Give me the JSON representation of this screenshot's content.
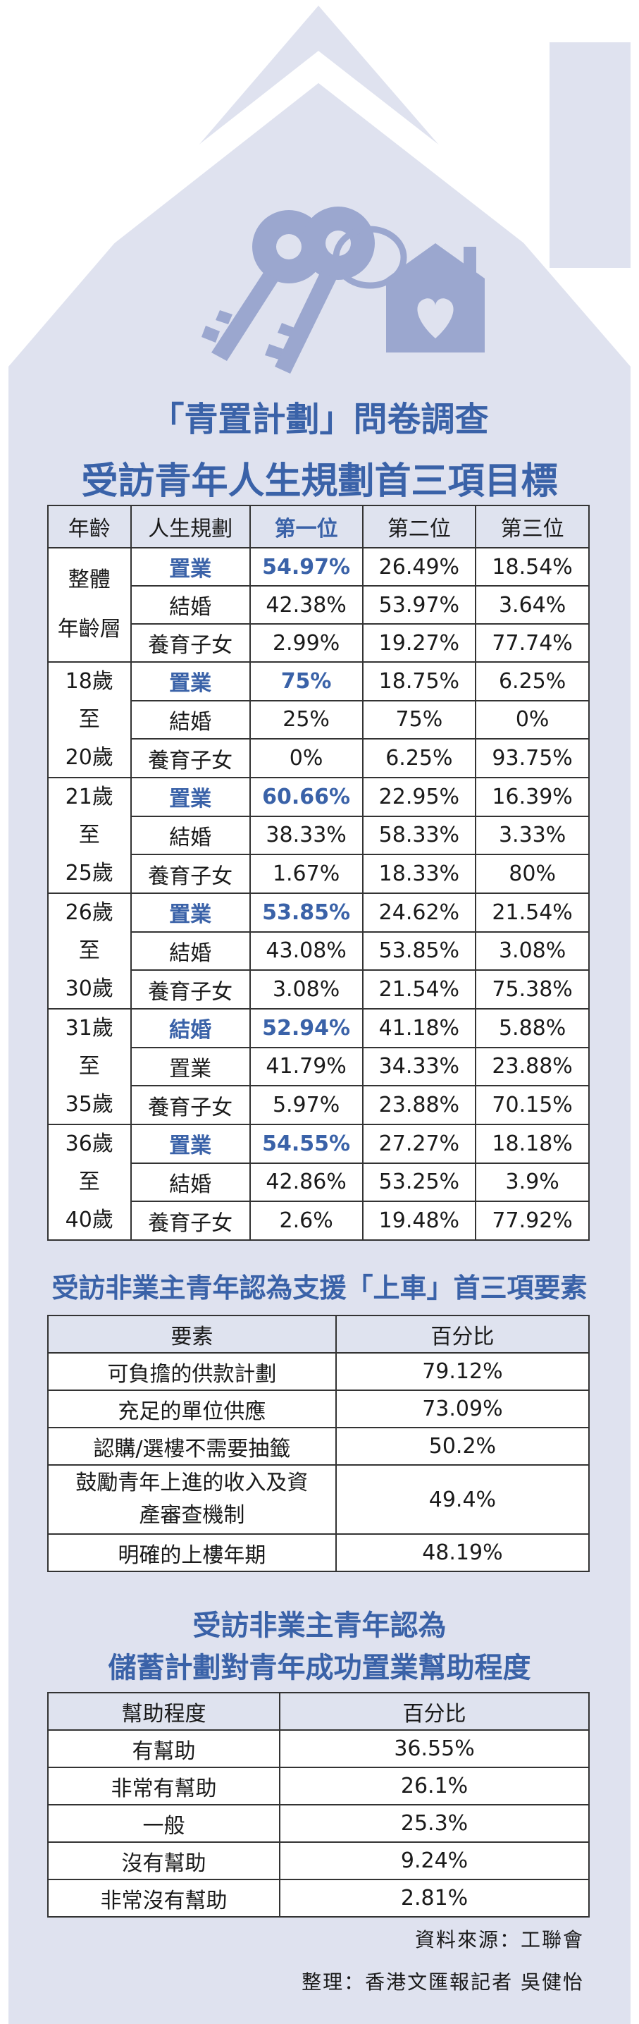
{
  "colors": {
    "accent": "#3a62a8",
    "house_fill": "#dfe2ef",
    "key_fill": "#9ba7cf"
  },
  "icons": [
    "house-outline",
    "keys-with-heart-house-keychain"
  ],
  "title": {
    "line1": "「青置計劃」問卷調查",
    "line2": "受訪青年人生規劃首三項目標"
  },
  "life_goals": {
    "headers": [
      "年齡",
      "人生規劃",
      "第一位",
      "第二位",
      "第三位"
    ],
    "groups": [
      {
        "age_lines": [
          "整體",
          "年齡層"
        ],
        "rows": [
          {
            "goal": "置業",
            "first": "54.97%",
            "second": "26.49%",
            "third": "18.54%"
          },
          {
            "goal": "結婚",
            "first": "42.38%",
            "second": "53.97%",
            "third": "3.64%"
          },
          {
            "goal": "養育子女",
            "first": "2.99%",
            "second": "19.27%",
            "third": "77.74%"
          }
        ]
      },
      {
        "age_lines": [
          "18歲",
          "至",
          "20歲"
        ],
        "rows": [
          {
            "goal": "置業",
            "first": "75%",
            "second": "18.75%",
            "third": "6.25%"
          },
          {
            "goal": "結婚",
            "first": "25%",
            "second": "75%",
            "third": "0%"
          },
          {
            "goal": "養育子女",
            "first": "0%",
            "second": "6.25%",
            "third": "93.75%"
          }
        ]
      },
      {
        "age_lines": [
          "21歲",
          "至",
          "25歲"
        ],
        "rows": [
          {
            "goal": "置業",
            "first": "60.66%",
            "second": "22.95%",
            "third": "16.39%"
          },
          {
            "goal": "結婚",
            "first": "38.33%",
            "second": "58.33%",
            "third": "3.33%"
          },
          {
            "goal": "養育子女",
            "first": "1.67%",
            "second": "18.33%",
            "third": "80%"
          }
        ]
      },
      {
        "age_lines": [
          "26歲",
          "至",
          "30歲"
        ],
        "rows": [
          {
            "goal": "置業",
            "first": "53.85%",
            "second": "24.62%",
            "third": "21.54%"
          },
          {
            "goal": "結婚",
            "first": "43.08%",
            "second": "53.85%",
            "third": "3.08%"
          },
          {
            "goal": "養育子女",
            "first": "3.08%",
            "second": "21.54%",
            "third": "75.38%"
          }
        ]
      },
      {
        "age_lines": [
          "31歲",
          "至",
          "35歲"
        ],
        "rows": [
          {
            "goal": "結婚",
            "first": "52.94%",
            "second": "41.18%",
            "third": "5.88%"
          },
          {
            "goal": "置業",
            "first": "41.79%",
            "second": "34.33%",
            "third": "23.88%"
          },
          {
            "goal": "養育子女",
            "first": "5.97%",
            "second": "23.88%",
            "third": "70.15%"
          }
        ]
      },
      {
        "age_lines": [
          "36歲",
          "至",
          "40歲"
        ],
        "rows": [
          {
            "goal": "置業",
            "first": "54.55%",
            "second": "27.27%",
            "third": "18.18%"
          },
          {
            "goal": "結婚",
            "first": "42.86%",
            "second": "53.25%",
            "third": "3.9%"
          },
          {
            "goal": "養育子女",
            "first": "2.6%",
            "second": "19.48%",
            "third": "77.92%"
          }
        ]
      }
    ]
  },
  "factors": {
    "title": "受訪非業主青年認為支援「上車」首三項要素",
    "headers": [
      "要素",
      "百分比"
    ],
    "rows": [
      {
        "item": "可負擔的供款計劃",
        "pct": "79.12%"
      },
      {
        "item": "充足的單位供應",
        "pct": "73.09%"
      },
      {
        "item": "認購/選樓不需要抽籤",
        "pct": "50.2%"
      },
      {
        "item": "鼓勵青年上進的收入及資產審查機制",
        "item_lines": [
          "鼓勵青年上進的收入及資",
          "產審查機制"
        ],
        "pct": "49.4%"
      },
      {
        "item": "明確的上樓年期",
        "pct": "48.19%"
      }
    ]
  },
  "savings": {
    "title_line1": "受訪非業主青年認為",
    "title_line2": "儲蓄計劃對青年成功置業幫助程度",
    "headers": [
      "幫助程度",
      "百分比"
    ],
    "rows": [
      {
        "item": "有幫助",
        "pct": "36.55%"
      },
      {
        "item": "非常有幫助",
        "pct": "26.1%"
      },
      {
        "item": "一般",
        "pct": "25.3%"
      },
      {
        "item": "沒有幫助",
        "pct": "9.24%"
      },
      {
        "item": "非常沒有幫助",
        "pct": "2.81%"
      }
    ]
  },
  "credits": {
    "source": "資料來源：工聯會",
    "editor": "整理：香港文匯報記者 吳健怡"
  }
}
